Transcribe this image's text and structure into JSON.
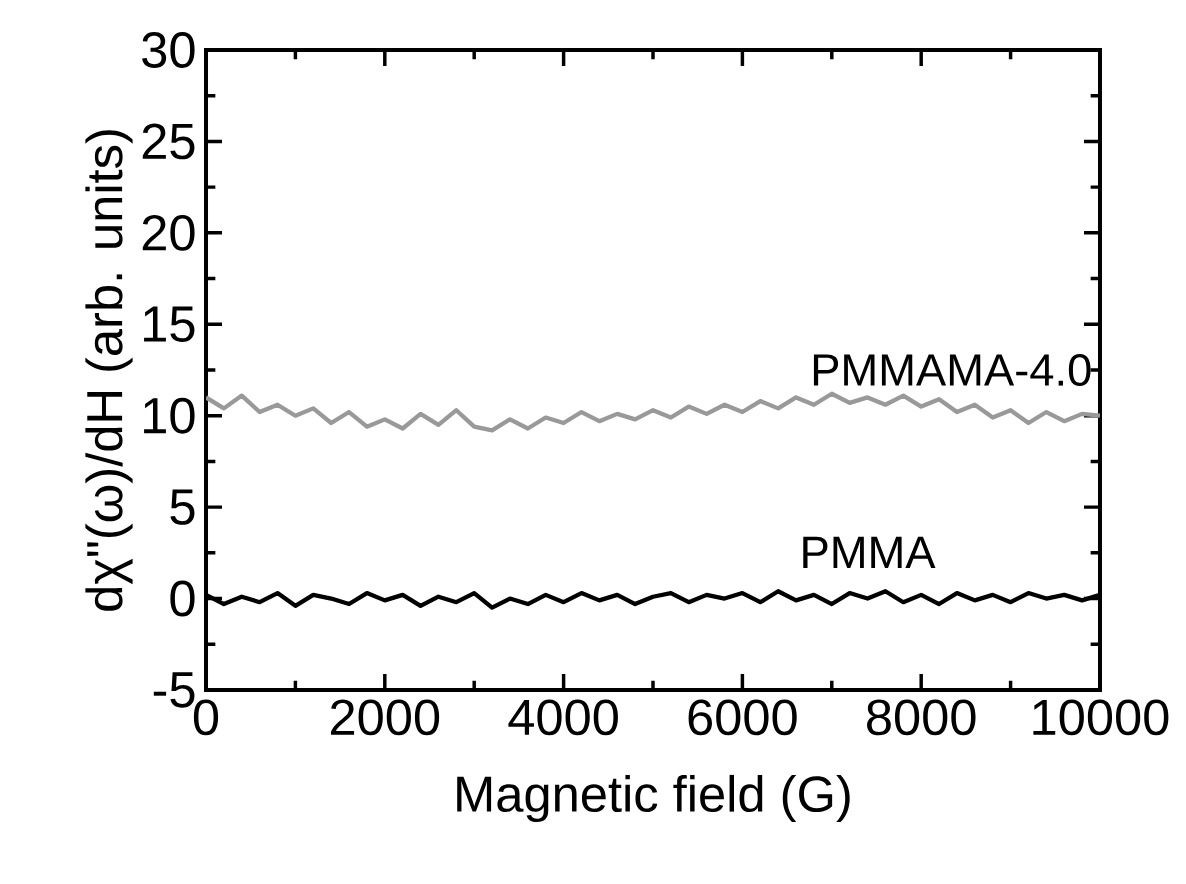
{
  "chart_data": {
    "type": "line",
    "xlabel": "Magnetic field (G)",
    "ylabel": "dχ\"(ω)/dH (arb. units)",
    "x": [
      0,
      200,
      400,
      600,
      800,
      1000,
      1200,
      1400,
      1600,
      1800,
      2000,
      2200,
      2400,
      2600,
      2800,
      3000,
      3200,
      3400,
      3600,
      3800,
      4000,
      4200,
      4400,
      4600,
      4800,
      5000,
      5200,
      5400,
      5600,
      5800,
      6000,
      6200,
      6400,
      6600,
      6800,
      7000,
      7200,
      7400,
      7600,
      7800,
      8000,
      8200,
      8400,
      8600,
      8800,
      9000,
      9200,
      9400,
      9600,
      9800,
      10000
    ],
    "series": [
      {
        "color": "#000000",
        "values": [
          0.2,
          -0.3,
          0.1,
          -0.2,
          0.3,
          -0.4,
          0.2,
          0.0,
          -0.3,
          0.3,
          -0.1,
          0.2,
          -0.4,
          0.1,
          -0.2,
          0.3,
          -0.5,
          0.0,
          -0.3,
          0.2,
          -0.2,
          0.3,
          -0.1,
          0.2,
          -0.3,
          0.1,
          0.3,
          -0.2,
          0.2,
          0.0,
          0.3,
          -0.2,
          0.4,
          -0.1,
          0.2,
          -0.3,
          0.3,
          0.0,
          0.4,
          -0.2,
          0.2,
          -0.3,
          0.3,
          -0.1,
          0.2,
          -0.2,
          0.3,
          0.0,
          0.2,
          -0.1,
          0.2
        ]
      },
      {
        "color": "#999999",
        "values": [
          11.0,
          10.4,
          11.1,
          10.2,
          10.6,
          10.0,
          10.4,
          9.6,
          10.2,
          9.4,
          9.8,
          9.3,
          10.1,
          9.5,
          10.3,
          9.4,
          9.2,
          9.8,
          9.3,
          9.9,
          9.6,
          10.2,
          9.7,
          10.1,
          9.8,
          10.3,
          9.9,
          10.5,
          10.1,
          10.6,
          10.2,
          10.8,
          10.4,
          11.0,
          10.6,
          11.2,
          10.7,
          11.0,
          10.6,
          11.1,
          10.5,
          10.9,
          10.2,
          10.6,
          9.9,
          10.3,
          9.6,
          10.2,
          9.7,
          10.1,
          10.0
        ]
      }
    ],
    "xlim": [
      0,
      10000
    ],
    "ylim": [
      -5,
      30
    ],
    "xticks": [
      0,
      2000,
      4000,
      6000,
      8000,
      10000
    ],
    "yticks": [
      -5,
      0,
      5,
      10,
      15,
      20,
      25,
      30
    ],
    "annotations": [
      "PMMAMA-4.0",
      "PMMA"
    ],
    "grid": false
  }
}
